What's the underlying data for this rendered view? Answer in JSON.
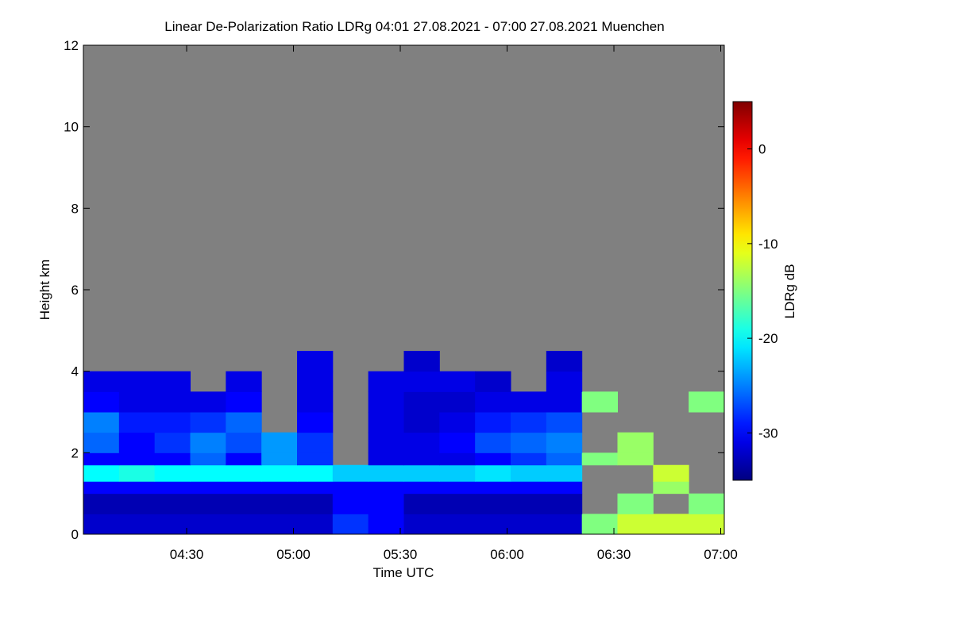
{
  "chart_data": {
    "type": "heatmap",
    "title": "Linear De-Polarization Ratio LDRg   04:01 27.08.2021 - 07:00 27.08.2021 Muenchen",
    "xlabel": "Time UTC",
    "ylabel": "Height km",
    "colorbar_label": "LDRg dB",
    "background_color": "#808080",
    "colormap": "jet",
    "xlim": [
      241,
      421
    ],
    "xticks": [
      {
        "value": 270,
        "label": "04:30"
      },
      {
        "value": 300,
        "label": "05:00"
      },
      {
        "value": 330,
        "label": "05:30"
      },
      {
        "value": 360,
        "label": "06:00"
      },
      {
        "value": 390,
        "label": "06:30"
      },
      {
        "value": 420,
        "label": "07:00"
      }
    ],
    "ylim": [
      0,
      12
    ],
    "yticks": [
      0,
      2,
      4,
      6,
      8,
      10,
      12
    ],
    "zlim": [
      -35,
      5
    ],
    "zticks": [
      0,
      -10,
      -20,
      -30
    ],
    "x_edges": [
      241,
      251,
      261,
      271,
      281,
      291,
      301,
      311,
      321,
      331,
      341,
      351,
      361,
      371,
      381,
      391,
      401,
      411,
      421
    ],
    "y_edges": [
      0,
      0.5,
      1,
      1.3,
      1.7,
      2,
      2.5,
      3,
      3.5,
      4,
      4.5
    ],
    "values": [
      [
        -32,
        -32,
        -32,
        -32,
        -32,
        -32,
        -32,
        -28,
        -30,
        -32,
        -32,
        -32,
        -32,
        -32,
        -15,
        -12,
        -12,
        -12
      ],
      [
        -33,
        -33,
        -33,
        -33,
        -33,
        -33,
        -33,
        -30,
        -30,
        -33,
        -33,
        -33,
        -33,
        -33,
        null,
        -15,
        null,
        -15
      ],
      [
        -30,
        -30,
        -30,
        -30,
        -30,
        -30,
        -30,
        -30,
        -30,
        -30,
        -30,
        -30,
        -30,
        -30,
        null,
        null,
        -14,
        null
      ],
      [
        -20,
        -19,
        -20,
        -20,
        -20,
        -20,
        -20,
        -22,
        -22,
        -22,
        -22,
        -21,
        -22,
        -22,
        null,
        null,
        -12,
        null
      ],
      [
        -30,
        -30,
        -30,
        -26,
        -30,
        -24,
        -28,
        null,
        -31,
        -31,
        -31,
        -30,
        -28,
        -26,
        -15,
        -14,
        null,
        null
      ],
      [
        -26,
        -30,
        -28,
        -25,
        -27,
        -24,
        -28,
        null,
        -31,
        -31,
        -30,
        -27,
        -26,
        -25,
        null,
        -14,
        null,
        null
      ],
      [
        -25,
        -29,
        -29,
        -28,
        -26,
        null,
        -30,
        null,
        -31,
        -32,
        -31,
        -29,
        -28,
        -27,
        null,
        null,
        null,
        null
      ],
      [
        -30,
        -31,
        -31,
        -31,
        -30,
        null,
        -31,
        null,
        -31,
        -32,
        -32,
        -31,
        -31,
        -31,
        -15,
        null,
        null,
        -15
      ],
      [
        -31,
        -31,
        -31,
        null,
        -31,
        null,
        -31,
        null,
        -31,
        -31,
        -31,
        -32,
        null,
        -31,
        null,
        null,
        null,
        null
      ],
      [
        null,
        null,
        null,
        null,
        null,
        null,
        -31,
        null,
        null,
        -32,
        null,
        null,
        null,
        -32,
        null,
        null,
        null,
        null
      ]
    ]
  }
}
